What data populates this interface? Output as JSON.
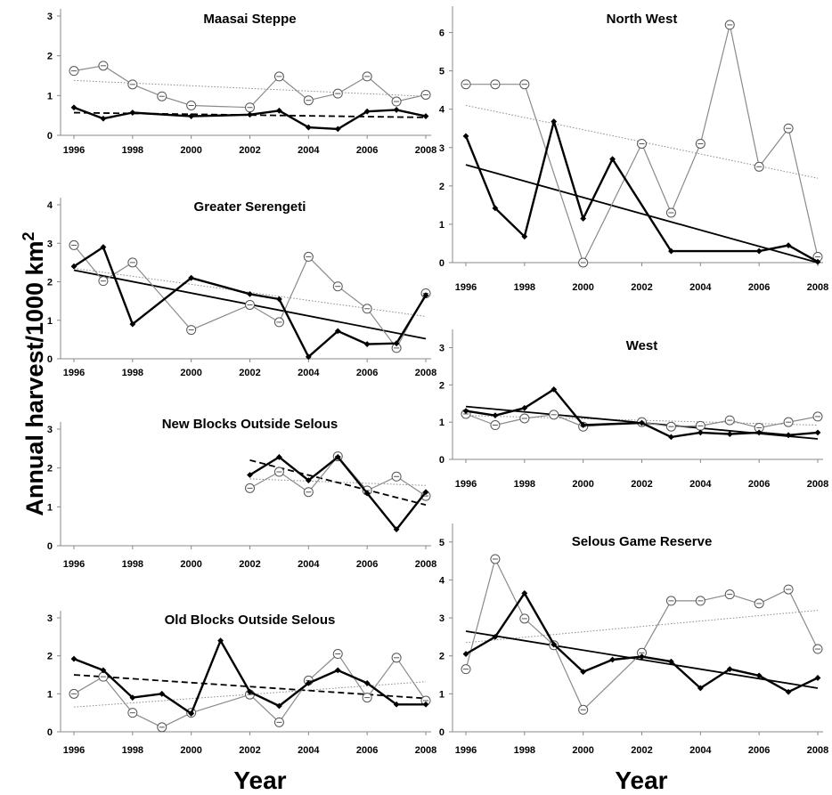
{
  "figure": {
    "ylabel": "Annual harvest/1000 km",
    "ylabel_sup": "2",
    "xlabel_left": "Year",
    "xlabel_right": "Year"
  },
  "colors": {
    "thick": "#000000",
    "thin": "#8a8a8a",
    "trend_dashed": "#000000",
    "trend_dotted": "#8a8a8a"
  },
  "chart_data": [
    {
      "type": "line",
      "title": "Maasai Steppe",
      "x": [
        1996,
        1997,
        1998,
        1999,
        2000,
        2001,
        2002,
        2003,
        2004,
        2005,
        2006,
        2007,
        2008
      ],
      "xticks": [
        1996,
        1998,
        2000,
        2002,
        2004,
        2006,
        2008
      ],
      "ylim": [
        0,
        3
      ],
      "yticks": [
        0,
        1,
        2,
        3
      ],
      "series": [
        {
          "style": "thin-circle",
          "x": [
            1996,
            1997,
            1998,
            1999,
            2000,
            2002,
            2003,
            2004,
            2005,
            2006,
            2007,
            2008
          ],
          "values": [
            1.62,
            1.75,
            1.28,
            0.98,
            0.75,
            0.7,
            1.48,
            0.88,
            1.05,
            1.48,
            0.85,
            1.02
          ]
        },
        {
          "style": "thick-diamond",
          "x": [
            1996,
            1997,
            1998,
            2000,
            2002,
            2003,
            2004,
            2005,
            2006,
            2007,
            2008
          ],
          "values": [
            0.7,
            0.42,
            0.57,
            0.48,
            0.52,
            0.62,
            0.2,
            0.16,
            0.6,
            0.64,
            0.48
          ]
        }
      ],
      "trends": [
        {
          "style": "dotted",
          "from": [
            1996,
            1.38
          ],
          "to": [
            2008,
            0.98
          ]
        },
        {
          "style": "dashed",
          "from": [
            1996,
            0.57
          ],
          "to": [
            2008,
            0.45
          ]
        }
      ]
    },
    {
      "type": "line",
      "title": "Greater Serengeti",
      "xticks": [
        1996,
        1998,
        2000,
        2002,
        2004,
        2006,
        2008
      ],
      "ylim": [
        0,
        4
      ],
      "yticks": [
        0,
        1,
        2,
        3,
        4
      ],
      "series": [
        {
          "style": "thin-circle",
          "x": [
            1996,
            1997,
            1998,
            2000,
            2002,
            2003,
            2004,
            2005,
            2006,
            2007,
            2008
          ],
          "values": [
            2.95,
            2.02,
            2.5,
            0.75,
            1.4,
            0.95,
            2.65,
            1.88,
            1.3,
            0.28,
            1.7
          ]
        },
        {
          "style": "thick-diamond",
          "x": [
            1996,
            1997,
            1998,
            2000,
            2002,
            2003,
            2004,
            2005,
            2006,
            2007,
            2008
          ],
          "values": [
            2.4,
            2.9,
            0.9,
            2.1,
            1.68,
            1.55,
            0.05,
            0.72,
            0.38,
            0.4,
            1.65
          ]
        }
      ],
      "trends": [
        {
          "style": "dotted",
          "from": [
            1996,
            2.35
          ],
          "to": [
            2008,
            1.1
          ]
        },
        {
          "style": "solid",
          "from": [
            1996,
            2.3
          ],
          "to": [
            2008,
            0.52
          ]
        }
      ]
    },
    {
      "type": "line",
      "title": "New Blocks Outside Selous",
      "xticks": [
        1996,
        1998,
        2000,
        2002,
        2004,
        2006,
        2008
      ],
      "ylim": [
        0,
        3
      ],
      "yticks": [
        0,
        1,
        2,
        3
      ],
      "series": [
        {
          "style": "thin-circle",
          "x": [
            2002,
            2003,
            2004,
            2005,
            2006,
            2007,
            2008
          ],
          "values": [
            1.48,
            1.9,
            1.38,
            2.3,
            1.42,
            1.78,
            1.28
          ]
        },
        {
          "style": "thick-diamond",
          "x": [
            2002,
            2003,
            2004,
            2005,
            2006,
            2007,
            2008
          ],
          "values": [
            1.82,
            2.28,
            1.68,
            2.28,
            1.35,
            0.42,
            1.38
          ]
        }
      ],
      "trends": [
        {
          "style": "dotted",
          "from": [
            2002,
            1.72
          ],
          "to": [
            2008,
            1.55
          ]
        },
        {
          "style": "dashed",
          "from": [
            2002,
            2.2
          ],
          "to": [
            2008,
            1.05
          ]
        }
      ]
    },
    {
      "type": "line",
      "title": "Old Blocks Outside Selous",
      "xticks": [
        1996,
        1998,
        2000,
        2002,
        2004,
        2006,
        2008
      ],
      "ylim": [
        0,
        3
      ],
      "yticks": [
        0,
        1,
        2,
        3
      ],
      "series": [
        {
          "style": "thin-circle",
          "x": [
            1996,
            1997,
            1998,
            1999,
            2000,
            2002,
            2003,
            2004,
            2005,
            2006,
            2007,
            2008
          ],
          "values": [
            1.0,
            1.45,
            0.5,
            0.12,
            0.5,
            0.98,
            0.25,
            1.35,
            2.05,
            0.9,
            1.95,
            0.82
          ]
        },
        {
          "style": "thick-diamond",
          "x": [
            1996,
            1997,
            1998,
            1999,
            2000,
            2001,
            2002,
            2003,
            2004,
            2005,
            2006,
            2007,
            2008
          ],
          "values": [
            1.92,
            1.62,
            0.9,
            1.0,
            0.48,
            2.4,
            1.05,
            0.68,
            1.28,
            1.62,
            1.28,
            0.72,
            0.72
          ]
        }
      ],
      "trends": [
        {
          "style": "dotted",
          "from": [
            1996,
            0.65
          ],
          "to": [
            2008,
            1.32
          ]
        },
        {
          "style": "dashed",
          "from": [
            1996,
            1.5
          ],
          "to": [
            2008,
            0.88
          ]
        }
      ]
    },
    {
      "type": "line",
      "title": "North West",
      "xticks": [
        1996,
        1998,
        2000,
        2002,
        2004,
        2006,
        2008
      ],
      "ylim": [
        0,
        6.5
      ],
      "yticks": [
        0,
        1,
        2,
        3,
        4,
        5,
        6
      ],
      "series": [
        {
          "style": "thin-circle",
          "x": [
            1996,
            1997,
            1998,
            2000,
            2002,
            2003,
            2004,
            2005,
            2006,
            2007,
            2008
          ],
          "values": [
            4.65,
            4.65,
            4.65,
            0.0,
            3.1,
            1.3,
            3.1,
            6.2,
            2.5,
            3.5,
            0.15
          ]
        },
        {
          "style": "thick-diamond",
          "x": [
            1996,
            1997,
            1998,
            1999,
            2000,
            2001,
            2003,
            2006,
            2007,
            2008
          ],
          "values": [
            3.3,
            1.42,
            0.68,
            3.68,
            1.15,
            2.7,
            0.3,
            0.3,
            0.45,
            0.02
          ]
        }
      ],
      "trends": [
        {
          "style": "dotted",
          "from": [
            1996,
            4.1
          ],
          "to": [
            2008,
            2.2
          ]
        },
        {
          "style": "solid",
          "from": [
            1996,
            2.55
          ],
          "to": [
            2008,
            0.0
          ]
        }
      ]
    },
    {
      "type": "line",
      "title": "West",
      "xticks": [
        1996,
        1998,
        2000,
        2002,
        2004,
        2006,
        2008
      ],
      "ylim": [
        0,
        3.3
      ],
      "yticks": [
        0,
        1,
        2,
        3
      ],
      "series": [
        {
          "style": "thin-circle",
          "x": [
            1996,
            1997,
            1998,
            1999,
            2000,
            2002,
            2003,
            2004,
            2005,
            2006,
            2007,
            2008
          ],
          "values": [
            1.22,
            0.92,
            1.1,
            1.2,
            0.88,
            1.0,
            0.88,
            0.9,
            1.05,
            0.85,
            1.0,
            1.15
          ]
        },
        {
          "style": "thick-diamond",
          "x": [
            1996,
            1997,
            1998,
            1999,
            2000,
            2002,
            2003,
            2004,
            2005,
            2006,
            2007,
            2008
          ],
          "values": [
            1.3,
            1.18,
            1.38,
            1.88,
            0.92,
            0.98,
            0.6,
            0.72,
            0.68,
            0.72,
            0.65,
            0.72
          ]
        }
      ],
      "trends": [
        {
          "style": "dotted",
          "from": [
            1996,
            1.18
          ],
          "to": [
            2008,
            0.92
          ]
        },
        {
          "style": "solid",
          "from": [
            1996,
            1.42
          ],
          "to": [
            2008,
            0.55
          ]
        }
      ]
    },
    {
      "type": "line",
      "title": "Selous Game Reserve",
      "xticks": [
        1996,
        1998,
        2000,
        2002,
        2004,
        2006,
        2008
      ],
      "ylim": [
        0,
        5.3
      ],
      "yticks": [
        0,
        1,
        2,
        3,
        4,
        5
      ],
      "series": [
        {
          "style": "thin-circle",
          "x": [
            1996,
            1997,
            1998,
            1999,
            2000,
            2002,
            2003,
            2004,
            2005,
            2006,
            2007,
            2008
          ],
          "values": [
            1.65,
            4.55,
            2.98,
            2.28,
            0.58,
            2.08,
            3.45,
            3.45,
            3.62,
            3.38,
            3.75,
            2.18
          ]
        },
        {
          "style": "thick-diamond",
          "x": [
            1996,
            1997,
            1998,
            1999,
            2000,
            2001,
            2002,
            2003,
            2004,
            2005,
            2006,
            2007,
            2008
          ],
          "values": [
            2.05,
            2.5,
            3.65,
            2.3,
            1.58,
            1.9,
            1.98,
            1.85,
            1.15,
            1.65,
            1.48,
            1.05,
            1.42
          ]
        }
      ],
      "trends": [
        {
          "style": "dotted",
          "from": [
            1996,
            2.35
          ],
          "to": [
            2008,
            3.2
          ]
        },
        {
          "style": "solid",
          "from": [
            1996,
            2.65
          ],
          "to": [
            2008,
            1.15
          ]
        }
      ]
    }
  ]
}
